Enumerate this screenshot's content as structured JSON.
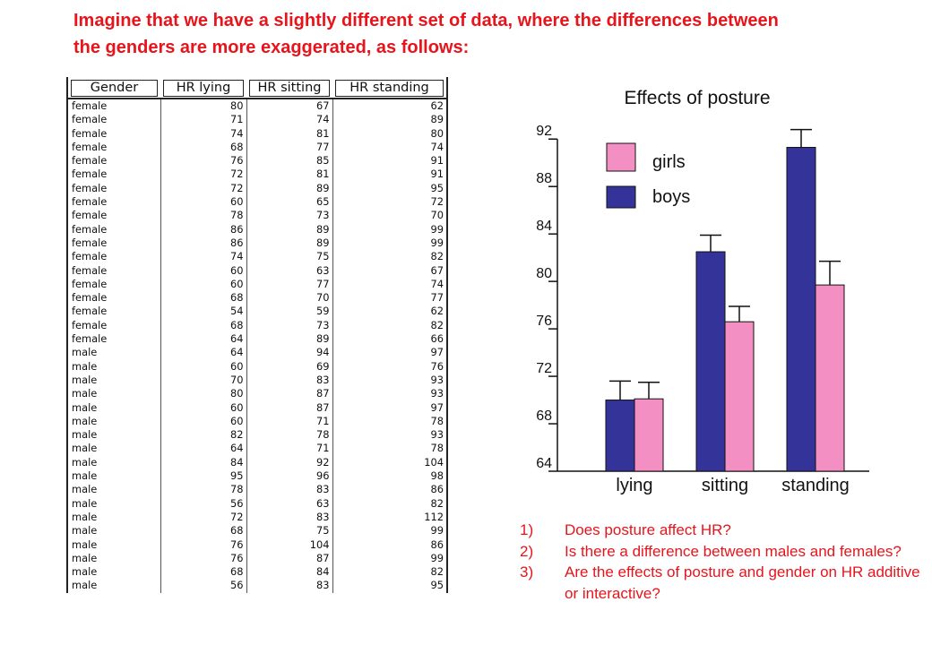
{
  "heading": {
    "line1": "Imagine that we have a slightly different set of data, where the differences between",
    "line2": "the genders are more exaggerated, as follows:"
  },
  "table": {
    "columns": [
      "Gender",
      "HR lying",
      "HR sitting",
      "HR standing"
    ],
    "rows": [
      [
        "female",
        80,
        67,
        62
      ],
      [
        "female",
        71,
        74,
        89
      ],
      [
        "female",
        74,
        81,
        80
      ],
      [
        "female",
        68,
        77,
        74
      ],
      [
        "female",
        76,
        85,
        91
      ],
      [
        "female",
        72,
        81,
        91
      ],
      [
        "female",
        72,
        89,
        95
      ],
      [
        "female",
        60,
        65,
        72
      ],
      [
        "female",
        78,
        73,
        70
      ],
      [
        "female",
        86,
        89,
        99
      ],
      [
        "female",
        86,
        89,
        99
      ],
      [
        "female",
        74,
        75,
        82
      ],
      [
        "female",
        60,
        63,
        67
      ],
      [
        "female",
        60,
        77,
        74
      ],
      [
        "female",
        68,
        70,
        77
      ],
      [
        "female",
        54,
        59,
        62
      ],
      [
        "female",
        68,
        73,
        82
      ],
      [
        "female",
        64,
        89,
        66
      ],
      [
        "male",
        64,
        94,
        97
      ],
      [
        "male",
        60,
        69,
        76
      ],
      [
        "male",
        70,
        83,
        93
      ],
      [
        "male",
        80,
        87,
        93
      ],
      [
        "male",
        60,
        87,
        97
      ],
      [
        "male",
        60,
        71,
        78
      ],
      [
        "male",
        82,
        78,
        93
      ],
      [
        "male",
        64,
        71,
        78
      ],
      [
        "male",
        84,
        92,
        104
      ],
      [
        "male",
        95,
        96,
        98
      ],
      [
        "male",
        78,
        83,
        86
      ],
      [
        "male",
        56,
        63,
        82
      ],
      [
        "male",
        72,
        83,
        112
      ],
      [
        "male",
        68,
        75,
        99
      ],
      [
        "male",
        76,
        104,
        86
      ],
      [
        "male",
        76,
        87,
        99
      ],
      [
        "male",
        68,
        84,
        82
      ],
      [
        "male",
        56,
        83,
        95
      ]
    ]
  },
  "chart_data": {
    "type": "bar",
    "title": "Effects of posture",
    "categories": [
      "lying",
      "sitting",
      "standing"
    ],
    "series": [
      {
        "name": "boys",
        "color": "#333399",
        "values": [
          70.0,
          82.5,
          91.3
        ],
        "errors": [
          1.6,
          1.4,
          1.5
        ]
      },
      {
        "name": "girls",
        "color": "#f48fc4",
        "values": [
          70.1,
          76.6,
          79.7
        ],
        "errors": [
          1.4,
          1.3,
          2.0
        ]
      }
    ],
    "yticks": [
      64,
      68,
      72,
      76,
      80,
      84,
      88,
      92
    ],
    "ylim": [
      64,
      93
    ],
    "legend_position": "top-left",
    "grid": false
  },
  "questions": [
    {
      "num": "1)",
      "text": "Does posture affect HR?"
    },
    {
      "num": "2)",
      "text": "Is there a difference between males and females?"
    },
    {
      "num": "3)",
      "text": "Are the effects of posture and gender on HR additive or interactive?"
    }
  ]
}
